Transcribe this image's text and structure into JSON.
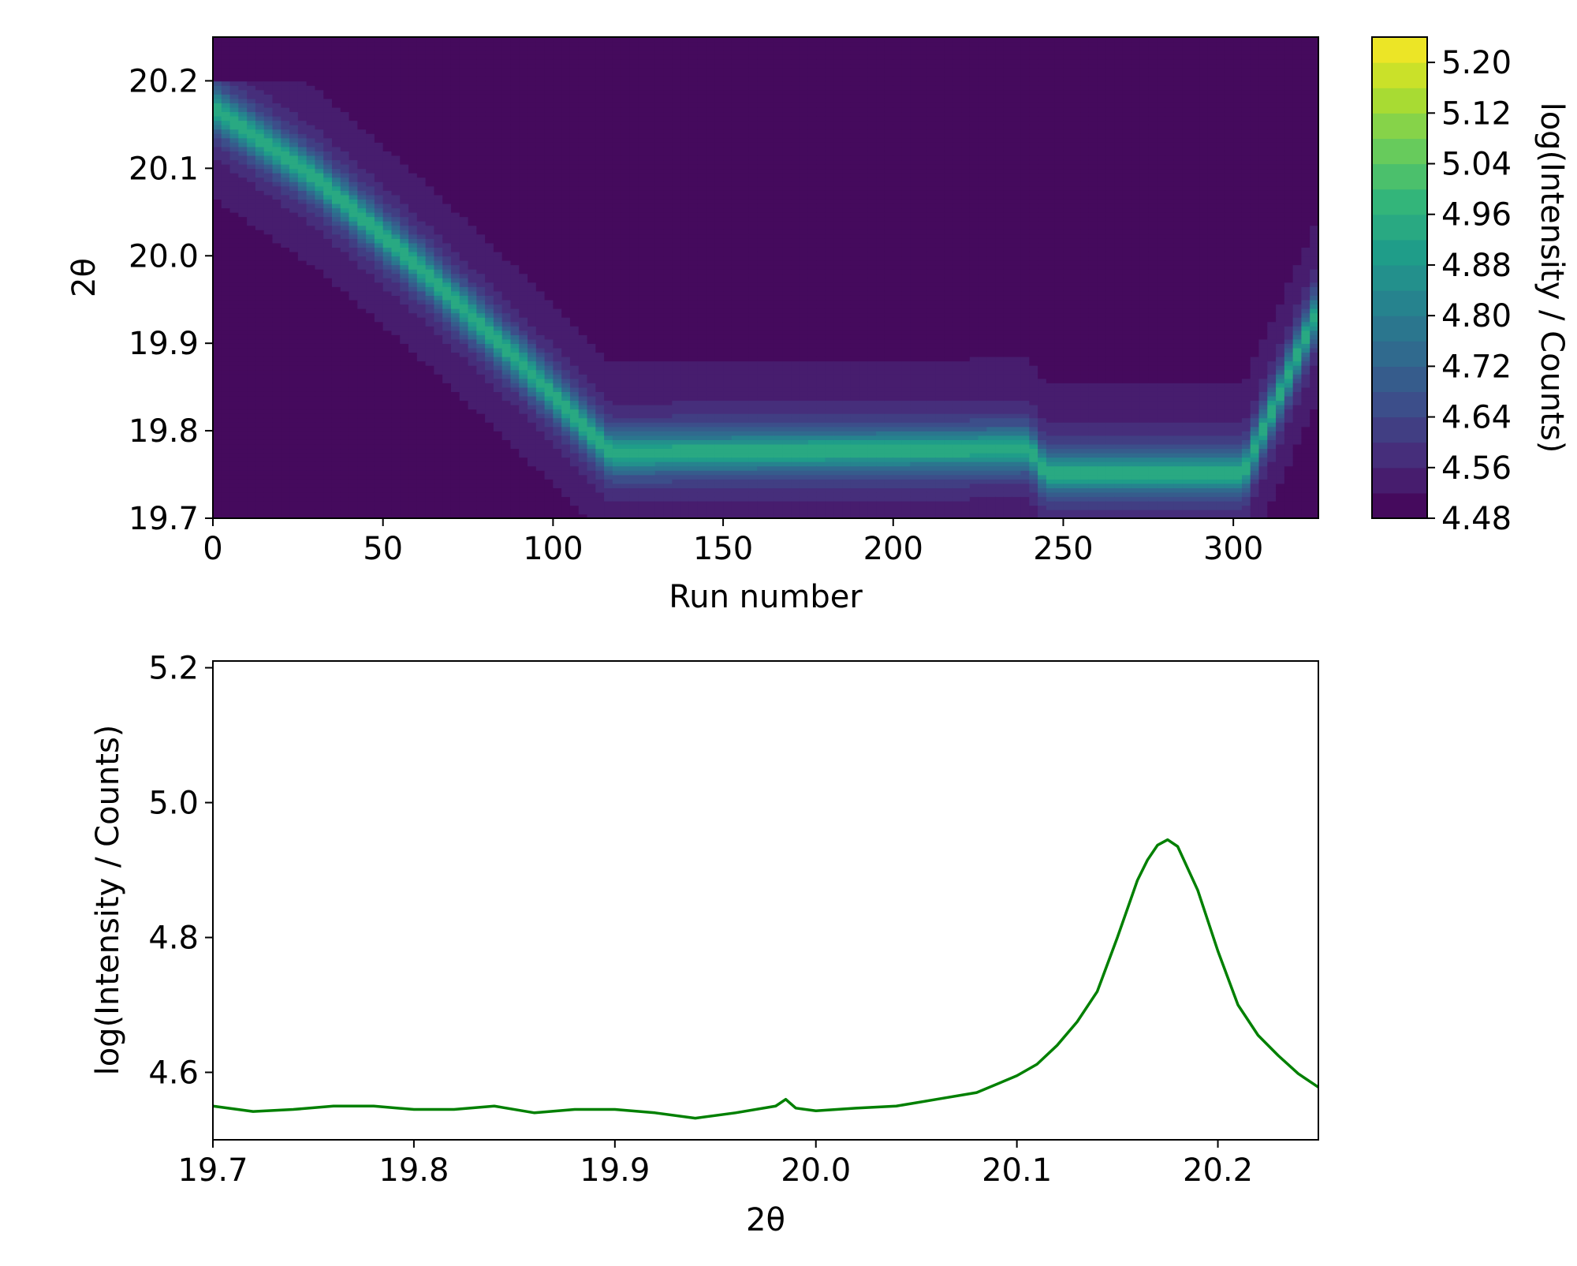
{
  "chart_data": [
    {
      "type": "heatmap",
      "title": "",
      "xlabel": "Run number",
      "ylabel": "2θ",
      "xlim": [
        0,
        325
      ],
      "ylim": [
        19.7,
        20.25
      ],
      "x_ticks": [
        "0",
        "50",
        "100",
        "150",
        "200",
        "250",
        "300"
      ],
      "y_ticks": [
        "19.7",
        "19.8",
        "19.9",
        "20.0",
        "20.1",
        "20.2"
      ],
      "colorbar": {
        "label": "log(Intensity / Counts)",
        "range": [
          4.48,
          5.24
        ],
        "tick_labels": [
          "4.48",
          "4.56",
          "4.64",
          "4.72",
          "4.80",
          "4.88",
          "4.96",
          "5.04",
          "5.12",
          "5.20"
        ],
        "levels": 19,
        "colormap": [
          "#440154",
          "#482878",
          "#3e4a89",
          "#31688e",
          "#26828e",
          "#1f9e89",
          "#35b779",
          "#6ece58",
          "#b5de2b",
          "#fde725"
        ]
      },
      "peak_track": [
        {
          "run": 0,
          "two_theta": 20.17
        },
        {
          "run": 30,
          "two_theta": 20.09
        },
        {
          "run": 60,
          "two_theta": 19.99
        },
        {
          "run": 90,
          "two_theta": 19.88
        },
        {
          "run": 117,
          "two_theta": 19.775
        },
        {
          "run": 240,
          "two_theta": 19.78
        },
        {
          "run": 245,
          "two_theta": 19.752
        },
        {
          "run": 303,
          "two_theta": 19.752
        },
        {
          "run": 325,
          "two_theta": 19.94
        }
      ],
      "peak_max": 4.96,
      "background": 4.5
    },
    {
      "type": "line",
      "title": "",
      "xlabel": "2θ",
      "ylabel": "log(Intensity / Counts)",
      "xlim": [
        19.7,
        20.25
      ],
      "ylim": [
        4.5,
        5.21
      ],
      "x_ticks": [
        "19.7",
        "19.8",
        "19.9",
        "20.0",
        "20.1",
        "20.2"
      ],
      "y_ticks": [
        "4.6",
        "4.8",
        "5.0",
        "5.2"
      ],
      "line_color": "#008000",
      "series": [
        {
          "name": "profile",
          "x": [
            19.7,
            19.72,
            19.74,
            19.76,
            19.78,
            19.8,
            19.82,
            19.84,
            19.86,
            19.88,
            19.9,
            19.92,
            19.94,
            19.96,
            19.98,
            19.985,
            19.99,
            20.0,
            20.02,
            20.04,
            20.06,
            20.08,
            20.1,
            20.11,
            20.12,
            20.13,
            20.14,
            20.15,
            20.16,
            20.165,
            20.17,
            20.175,
            20.18,
            20.19,
            20.2,
            20.21,
            20.22,
            20.23,
            20.24,
            20.25
          ],
          "values": [
            4.55,
            4.542,
            4.545,
            4.55,
            4.55,
            4.545,
            4.545,
            4.55,
            4.54,
            4.545,
            4.545,
            4.54,
            4.532,
            4.54,
            4.55,
            4.56,
            4.547,
            4.543,
            4.547,
            4.55,
            4.56,
            4.57,
            4.595,
            4.612,
            4.64,
            4.675,
            4.72,
            4.8,
            4.885,
            4.915,
            4.937,
            4.945,
            4.935,
            4.87,
            4.78,
            4.7,
            4.655,
            4.625,
            4.598,
            4.578
          ]
        }
      ]
    }
  ]
}
